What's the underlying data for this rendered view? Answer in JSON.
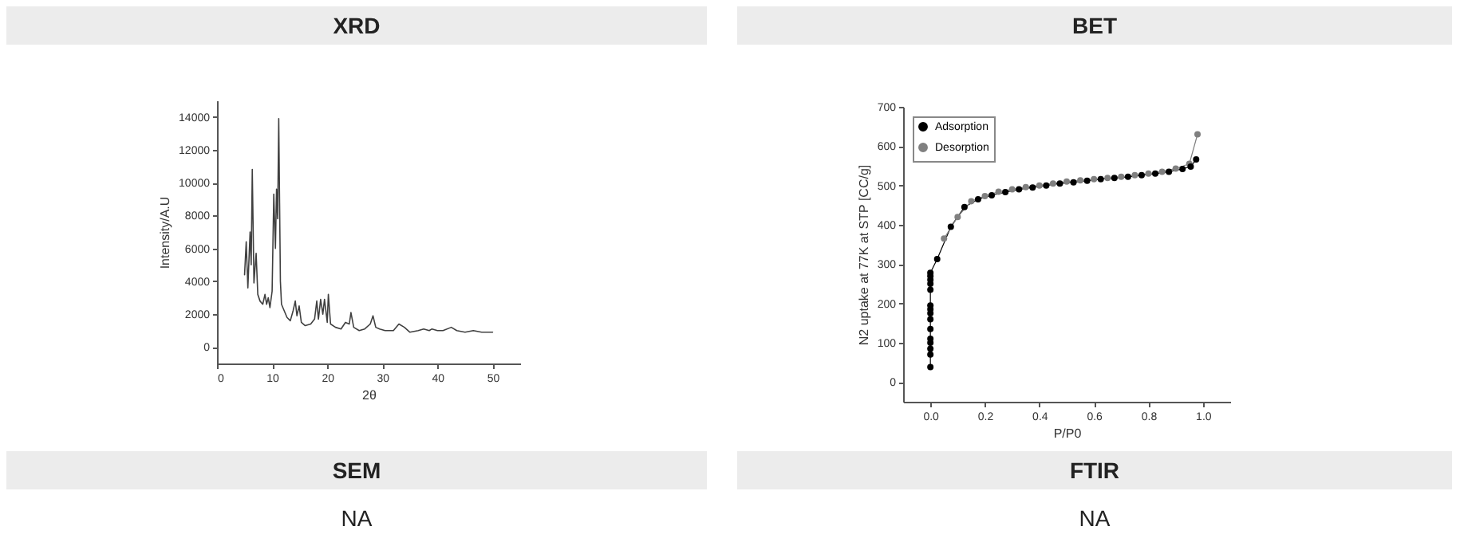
{
  "chart_data": [
    {
      "type": "line",
      "title": "XRD",
      "xlabel": "2θ",
      "ylabel": "Intensity/A.U",
      "xlim": [
        0,
        55
      ],
      "ylim": [
        -1000,
        15000
      ],
      "xticks": [
        0,
        10,
        20,
        30,
        40,
        50
      ],
      "yticks": [
        0,
        2000,
        4000,
        6000,
        8000,
        10000,
        12000,
        14000
      ],
      "marker": "none",
      "line_style": "solid",
      "series": [
        {
          "color": "#404040",
          "x": [
            5.0,
            5.3,
            5.6,
            6.0,
            6.2,
            6.4,
            6.7,
            7.1,
            7.4,
            7.8,
            8.3,
            8.7,
            9.0,
            9.3,
            9.6,
            10.0,
            10.3,
            10.6,
            10.8,
            11.0,
            11.2,
            11.5,
            11.7,
            12.2,
            12.7,
            13.3,
            13.8,
            14.2,
            14.5,
            14.9,
            15.3,
            16.0,
            17.0,
            17.7,
            18.1,
            18.4,
            18.8,
            19.2,
            19.5,
            20.0,
            20.2,
            20.6,
            21.5,
            22.5,
            23.3,
            24.0,
            24.3,
            24.8,
            25.8,
            26.8,
            27.8,
            28.3,
            28.8,
            29.5,
            30.5,
            32.0,
            33.0,
            34.0,
            35.0,
            36.5,
            37.5,
            38.5,
            39.0,
            40.0,
            41.0,
            42.5,
            43.5,
            45.0,
            46.5,
            48.0,
            50.0
          ],
          "values": [
            4400,
            6400,
            3600,
            7000,
            5000,
            10800,
            3900,
            5700,
            3200,
            2800,
            2600,
            3200,
            2600,
            3000,
            2400,
            3400,
            9300,
            6000,
            9600,
            7800,
            13900,
            4000,
            2600,
            2200,
            1800,
            1600,
            2200,
            2800,
            1900,
            2500,
            1500,
            1300,
            1400,
            1700,
            2800,
            1700,
            2900,
            2000,
            2900,
            1500,
            3200,
            1400,
            1200,
            1100,
            1500,
            1400,
            2100,
            1200,
            1000,
            1100,
            1400,
            1900,
            1200,
            1100,
            1000,
            1000,
            1400,
            1200,
            900,
            1000,
            1100,
            1000,
            1100,
            1000,
            1000,
            1200,
            1000,
            900,
            1000,
            900,
            900
          ]
        }
      ]
    },
    {
      "type": "line",
      "title": "BET",
      "xlabel": "P/P0",
      "ylabel": "N2 uptake at 77K  at STP [CC/g]",
      "xlim": [
        -0.1,
        1.1
      ],
      "ylim": [
        -50,
        700
      ],
      "xticks": [
        {
          "value": 0,
          "label": "0.0"
        },
        0.2,
        0.4,
        0.6,
        0.8,
        {
          "value": 1,
          "label": "1.0"
        }
      ],
      "yticks": [
        0,
        100,
        200,
        300,
        400,
        500,
        600,
        700
      ],
      "marker": "circle",
      "line_style": "solid",
      "legend": "top left",
      "series": [
        {
          "name": "Adsorption",
          "color": "#000000",
          "x": [
            0,
            0,
            0,
            0,
            0,
            0,
            0,
            0,
            0,
            0,
            0,
            0,
            0,
            0,
            0,
            0.025,
            0.075,
            0.125,
            0.175,
            0.225,
            0.275,
            0.325,
            0.375,
            0.425,
            0.475,
            0.525,
            0.575,
            0.625,
            0.675,
            0.725,
            0.775,
            0.825,
            0.875,
            0.925,
            0.955,
            0.975
          ],
          "values": [
            38,
            70,
            85,
            100,
            110,
            135,
            160,
            175,
            185,
            195,
            235,
            250,
            260,
            270,
            278,
            313,
            395,
            445,
            465,
            475,
            483,
            490,
            495,
            500,
            505,
            508,
            512,
            516,
            519,
            522,
            526,
            530,
            535,
            542,
            548,
            566
          ]
        },
        {
          "name": "Desorption",
          "color": "#808080",
          "x": [
            0.98,
            0.95,
            0.9,
            0.85,
            0.8,
            0.75,
            0.7,
            0.65,
            0.6,
            0.55,
            0.5,
            0.45,
            0.4,
            0.35,
            0.3,
            0.25,
            0.2,
            0.15,
            0.1,
            0.05
          ],
          "values": [
            630,
            555,
            543,
            535,
            530,
            526,
            522,
            519,
            516,
            513,
            510,
            505,
            500,
            496,
            490,
            484,
            473,
            460,
            420,
            365
          ]
        }
      ]
    },
    {
      "type": "other",
      "title": "SEM",
      "annotations": [
        "NA"
      ]
    },
    {
      "type": "other",
      "title": "FTIR",
      "annotations": [
        "NA"
      ]
    }
  ]
}
